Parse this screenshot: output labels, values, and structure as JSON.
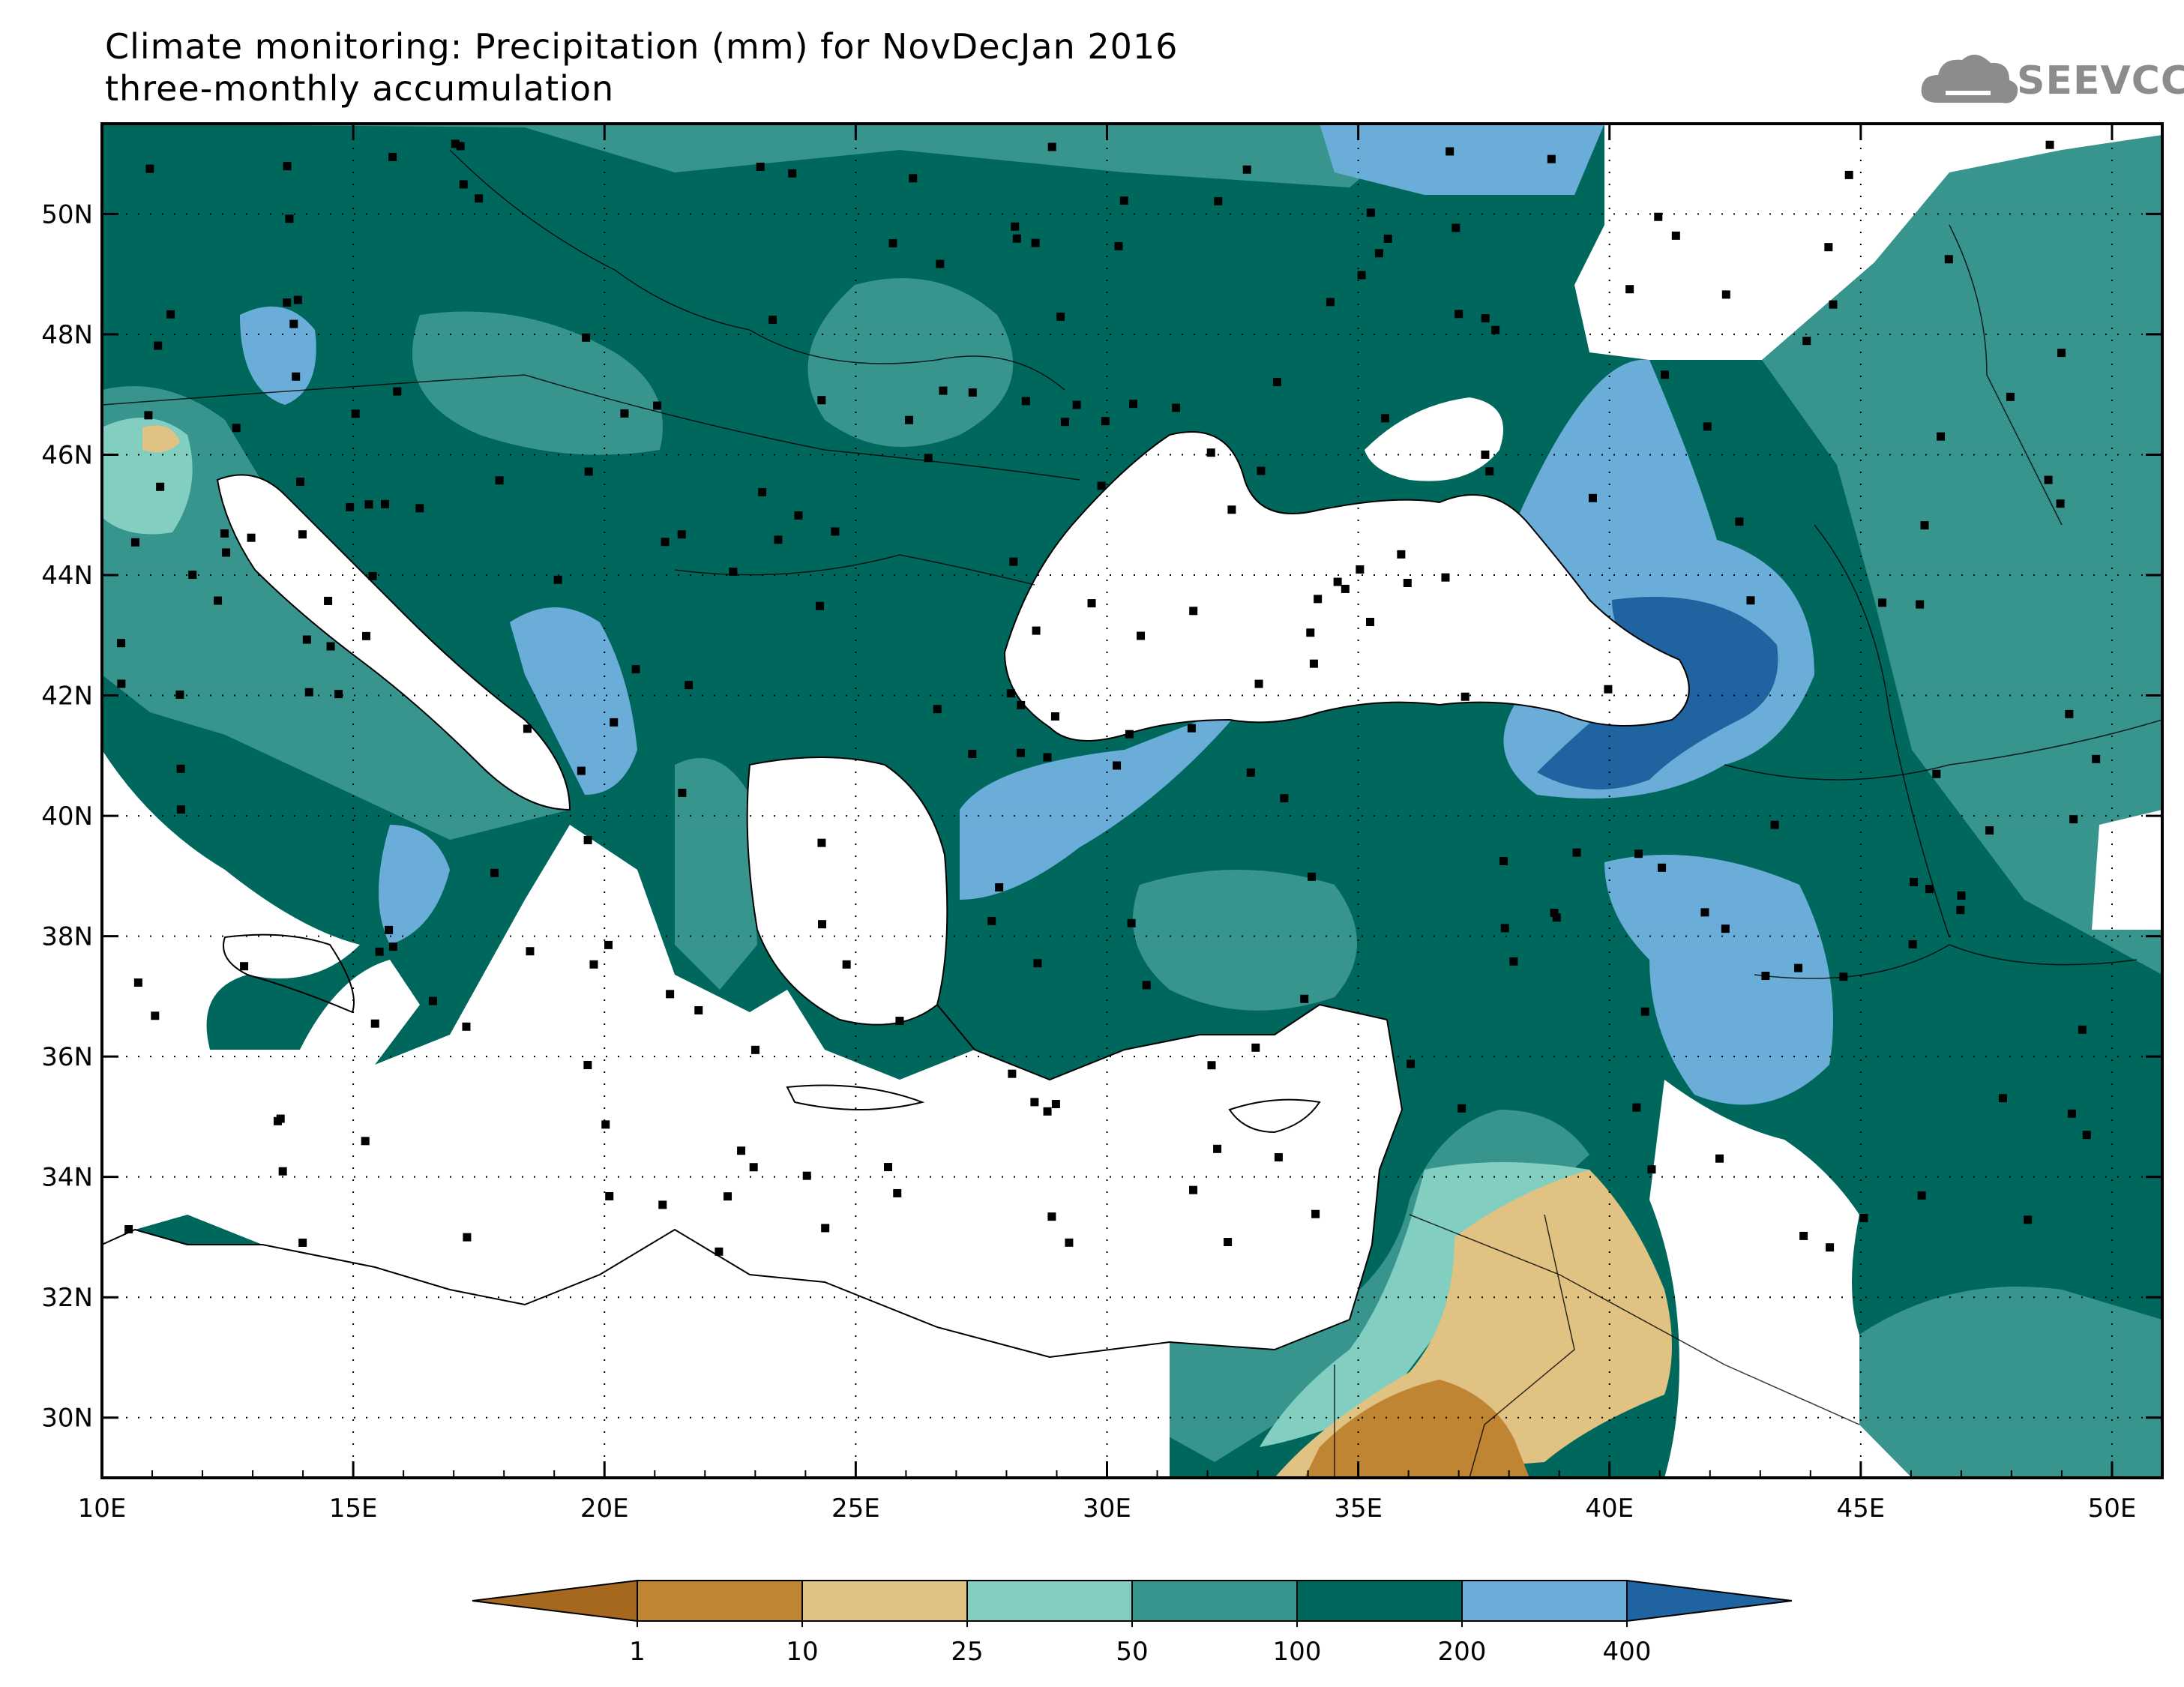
{
  "title": {
    "line1": "Climate monitoring: Precipitation (mm) for NovDecJan 2016",
    "line2": "three-monthly accumulation"
  },
  "logo": {
    "text": "SEEVCCC",
    "icon": "cloud-icon"
  },
  "map": {
    "lon_range": [
      10,
      51
    ],
    "lat_range": [
      29,
      51.5
    ],
    "lon_ticks": [
      "10E",
      "15E",
      "20E",
      "25E",
      "30E",
      "35E",
      "40E",
      "45E",
      "50E"
    ],
    "lat_ticks": [
      "30N",
      "32N",
      "34N",
      "36N",
      "38N",
      "40N",
      "42N",
      "44N",
      "46N",
      "48N",
      "50N"
    ],
    "grid": true
  },
  "legend": {
    "labels": [
      "1",
      "10",
      "25",
      "50",
      "100",
      "200",
      "400"
    ],
    "colors": [
      "#a5681e",
      "#c08532",
      "#e0c282",
      "#82cfc2",
      "#37958e",
      "#00675c",
      "#6aadd8",
      "#1f63a0"
    ]
  },
  "colors": {
    "sea": "#ffffff",
    "dark_green": "#00675c",
    "mid_green": "#37958e",
    "light_teal": "#82cfc2",
    "light_blue": "#6aadd8",
    "dark_blue": "#1f63a0",
    "tan": "#e0c282",
    "brown": "#c08532"
  }
}
